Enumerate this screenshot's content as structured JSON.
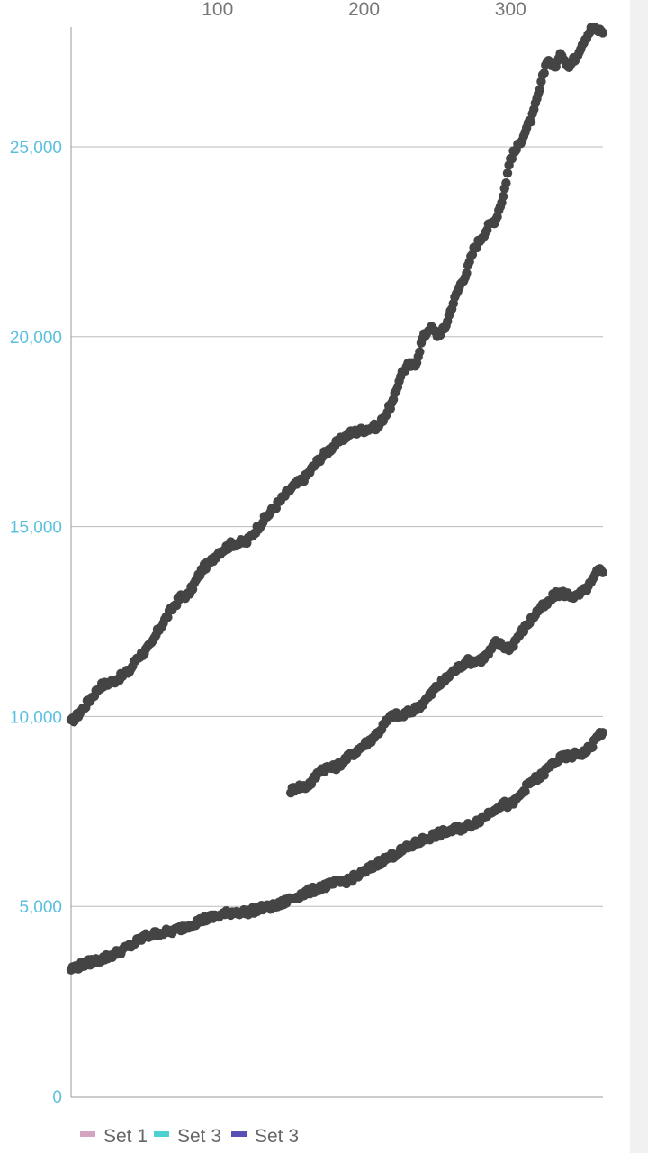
{
  "chart_data": {
    "type": "scatter",
    "title": "",
    "xlabel": "",
    "ylabel": "",
    "x_axis_position": "top",
    "x_ticks": [
      "100",
      "200",
      "300"
    ],
    "x_tick_values": [
      100,
      200,
      300
    ],
    "xlim": [
      0,
      363
    ],
    "y_ticks": [
      "0",
      "5,000",
      "10,000",
      "15,000",
      "20,000",
      "25,000"
    ],
    "y_tick_values": [
      0,
      5000,
      10000,
      15000,
      20000,
      25000
    ],
    "ylim": [
      0,
      28200
    ],
    "grid": "horizontal",
    "legend_position": "bottom-left",
    "colors": {
      "marker": "#444444",
      "y_tick_text": "#5bc0de",
      "x_tick_text": "#777777",
      "grid": "#bbbbbb",
      "axis": "#999999"
    },
    "legend": [
      {
        "label": "Set 1",
        "color": "#d4a5c1"
      },
      {
        "label": "Set 3",
        "color": "#4dd0d0"
      },
      {
        "label": "Set 3",
        "color": "#5a4fb5"
      }
    ],
    "series": [
      {
        "keypoints": [
          [
            0,
            9850
          ],
          [
            5,
            10050
          ],
          [
            10,
            10300
          ],
          [
            15,
            10550
          ],
          [
            20,
            10800
          ],
          [
            30,
            10950
          ],
          [
            40,
            11200
          ],
          [
            45,
            11550
          ],
          [
            50,
            11700
          ],
          [
            55,
            11900
          ],
          [
            60,
            12300
          ],
          [
            65,
            12600
          ],
          [
            70,
            12900
          ],
          [
            75,
            13150
          ],
          [
            80,
            13200
          ],
          [
            85,
            13550
          ],
          [
            90,
            13900
          ],
          [
            95,
            14050
          ],
          [
            100,
            14300
          ],
          [
            110,
            14550
          ],
          [
            120,
            14600
          ],
          [
            130,
            15100
          ],
          [
            140,
            15550
          ],
          [
            150,
            16000
          ],
          [
            160,
            16300
          ],
          [
            170,
            16800
          ],
          [
            180,
            17150
          ],
          [
            190,
            17450
          ],
          [
            200,
            17550
          ],
          [
            210,
            17650
          ],
          [
            220,
            18300
          ],
          [
            225,
            19000
          ],
          [
            230,
            19250
          ],
          [
            235,
            19250
          ],
          [
            240,
            19950
          ],
          [
            245,
            20250
          ],
          [
            250,
            20050
          ],
          [
            255,
            20200
          ],
          [
            260,
            20800
          ],
          [
            265,
            21300
          ],
          [
            270,
            21700
          ],
          [
            275,
            22300
          ],
          [
            280,
            22600
          ],
          [
            285,
            22900
          ],
          [
            290,
            23100
          ],
          [
            295,
            23700
          ],
          [
            300,
            24700
          ],
          [
            305,
            25000
          ],
          [
            310,
            25400
          ],
          [
            315,
            25800
          ],
          [
            320,
            26500
          ],
          [
            325,
            27300
          ],
          [
            330,
            27100
          ],
          [
            335,
            27450
          ],
          [
            340,
            27100
          ],
          [
            345,
            27400
          ],
          [
            350,
            27800
          ],
          [
            355,
            28100
          ],
          [
            363,
            28050
          ]
        ],
        "step": 1
      },
      {
        "keypoints": [
          [
            150,
            8050
          ],
          [
            155,
            8150
          ],
          [
            160,
            8150
          ],
          [
            165,
            8300
          ],
          [
            170,
            8600
          ],
          [
            175,
            8650
          ],
          [
            180,
            8650
          ],
          [
            185,
            8800
          ],
          [
            190,
            8950
          ],
          [
            195,
            9100
          ],
          [
            200,
            9250
          ],
          [
            205,
            9400
          ],
          [
            210,
            9600
          ],
          [
            215,
            9850
          ],
          [
            220,
            10050
          ],
          [
            225,
            10000
          ],
          [
            230,
            10100
          ],
          [
            235,
            10200
          ],
          [
            240,
            10350
          ],
          [
            245,
            10550
          ],
          [
            250,
            10800
          ],
          [
            255,
            10950
          ],
          [
            260,
            11150
          ],
          [
            265,
            11300
          ],
          [
            270,
            11450
          ],
          [
            275,
            11450
          ],
          [
            280,
            11500
          ],
          [
            285,
            11650
          ],
          [
            290,
            11950
          ],
          [
            295,
            11850
          ],
          [
            300,
            11800
          ],
          [
            305,
            12100
          ],
          [
            310,
            12350
          ],
          [
            315,
            12600
          ],
          [
            320,
            12850
          ],
          [
            325,
            12950
          ],
          [
            330,
            13200
          ],
          [
            335,
            13250
          ],
          [
            340,
            13200
          ],
          [
            345,
            13150
          ],
          [
            350,
            13300
          ],
          [
            355,
            13500
          ],
          [
            360,
            13850
          ],
          [
            363,
            13850
          ]
        ],
        "step": 1
      },
      {
        "keypoints": [
          [
            0,
            3350
          ],
          [
            10,
            3500
          ],
          [
            20,
            3600
          ],
          [
            30,
            3750
          ],
          [
            40,
            3950
          ],
          [
            50,
            4200
          ],
          [
            60,
            4300
          ],
          [
            70,
            4350
          ],
          [
            80,
            4500
          ],
          [
            90,
            4650
          ],
          [
            100,
            4750
          ],
          [
            110,
            4850
          ],
          [
            120,
            4850
          ],
          [
            130,
            4950
          ],
          [
            140,
            5000
          ],
          [
            150,
            5200
          ],
          [
            160,
            5350
          ],
          [
            170,
            5500
          ],
          [
            180,
            5600
          ],
          [
            190,
            5700
          ],
          [
            200,
            5900
          ],
          [
            210,
            6150
          ],
          [
            220,
            6350
          ],
          [
            230,
            6550
          ],
          [
            240,
            6750
          ],
          [
            250,
            6900
          ],
          [
            260,
            7000
          ],
          [
            270,
            7100
          ],
          [
            280,
            7300
          ],
          [
            290,
            7600
          ],
          [
            295,
            7700
          ],
          [
            300,
            7650
          ],
          [
            305,
            7850
          ],
          [
            310,
            8100
          ],
          [
            315,
            8300
          ],
          [
            320,
            8400
          ],
          [
            325,
            8600
          ],
          [
            330,
            8800
          ],
          [
            335,
            8900
          ],
          [
            340,
            8950
          ],
          [
            345,
            9000
          ],
          [
            350,
            9050
          ],
          [
            355,
            9200
          ],
          [
            360,
            9500
          ],
          [
            363,
            9600
          ]
        ],
        "step": 1
      }
    ]
  }
}
